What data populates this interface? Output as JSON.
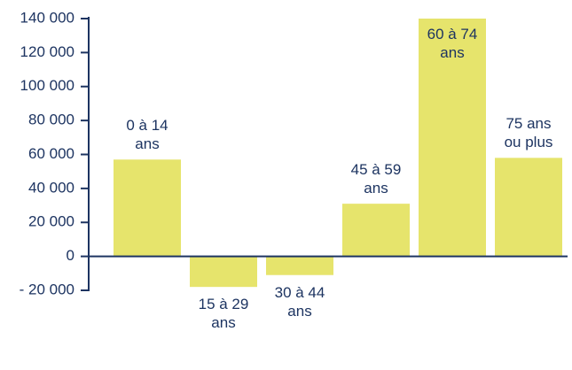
{
  "chart_data": {
    "type": "bar",
    "categories": [
      "0 à 14\nans",
      "15 à 29\nans",
      "30 à 44\nans",
      "45 à 59\nans",
      "60 à 74\nans",
      "75 ans\nou plus"
    ],
    "values": [
      57000,
      -18000,
      -11000,
      31000,
      140000,
      58000
    ],
    "color": "#e6e46c",
    "ylim": [
      -20000,
      140000
    ],
    "yticks": [
      {
        "value": -20000,
        "label": "- 20 000"
      },
      0,
      {
        "value": 20000,
        "label": "20 000"
      },
      {
        "value": 40000,
        "label": "40 000"
      },
      {
        "value": 60000,
        "label": "60 000"
      },
      {
        "value": 80000,
        "label": "80 000"
      },
      {
        "value": 100000,
        "label": "100 000"
      },
      {
        "value": 120000,
        "label": "120 000"
      },
      {
        "value": 140000,
        "label": "140 000"
      }
    ]
  }
}
